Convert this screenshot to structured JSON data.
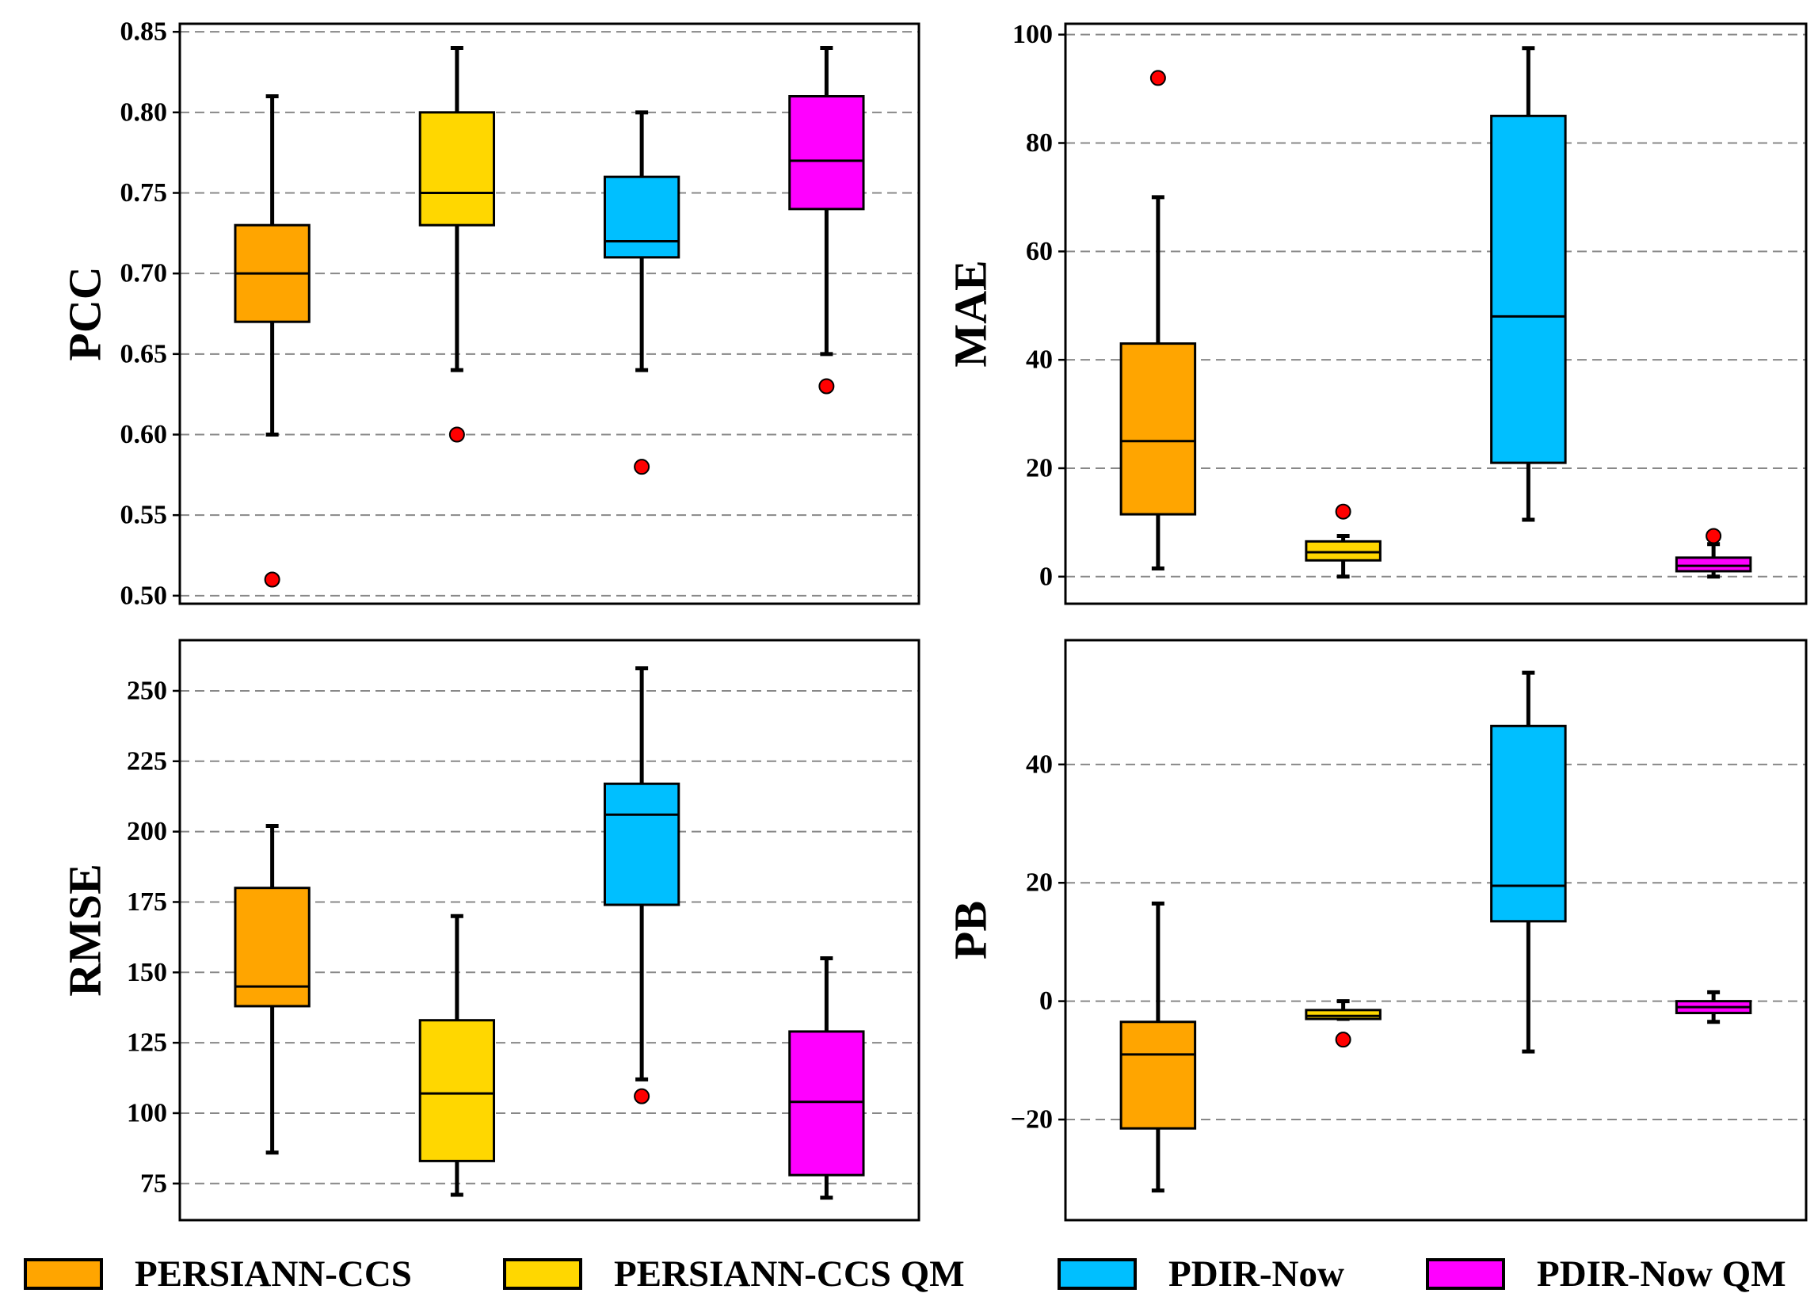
{
  "colors": {
    "PERSIANN-CCS": "#FFA500",
    "PERSIANN-CCS QM": "#FFD700",
    "PDIR-Now": "#00BFFF",
    "PDIR-Now QM": "#FF00FF",
    "outlier": "#FF0000",
    "grid": "#888888"
  },
  "legend": {
    "items": [
      {
        "label": "PERSIANN-CCS",
        "color": "#FFA500"
      },
      {
        "label": "PERSIANN-CCS QM",
        "color": "#FFD700"
      },
      {
        "label": "PDIR-Now",
        "color": "#00BFFF"
      },
      {
        "label": "PDIR-Now QM",
        "color": "#FF00FF"
      }
    ]
  },
  "chart_data": [
    {
      "type": "box",
      "ylabel": "PCC",
      "ylim": [
        0.495,
        0.855
      ],
      "yticks": [
        0.5,
        0.55,
        0.6,
        0.65,
        0.7,
        0.75,
        0.8,
        0.85
      ],
      "ytick_labels": [
        "0.50",
        "0.55",
        "0.60",
        "0.65",
        "0.70",
        "0.75",
        "0.80",
        "0.85"
      ],
      "grid": true,
      "series": [
        {
          "name": "PERSIANN-CCS",
          "whisker_low": 0.6,
          "q1": 0.67,
          "median": 0.7,
          "q3": 0.73,
          "whisker_high": 0.81,
          "outliers": [
            0.51
          ]
        },
        {
          "name": "PERSIANN-CCS QM",
          "whisker_low": 0.64,
          "q1": 0.73,
          "median": 0.75,
          "q3": 0.8,
          "whisker_high": 0.84,
          "outliers": [
            0.6
          ]
        },
        {
          "name": "PDIR-Now",
          "whisker_low": 0.64,
          "q1": 0.71,
          "median": 0.72,
          "q3": 0.76,
          "whisker_high": 0.8,
          "outliers": [
            0.58
          ]
        },
        {
          "name": "PDIR-Now QM",
          "whisker_low": 0.65,
          "q1": 0.74,
          "median": 0.77,
          "q3": 0.81,
          "whisker_high": 0.84,
          "outliers": [
            0.63
          ]
        }
      ]
    },
    {
      "type": "box",
      "ylabel": "MAE",
      "ylim": [
        -5,
        102
      ],
      "yticks": [
        0,
        20,
        40,
        60,
        80,
        100
      ],
      "ytick_labels": [
        "0",
        "20",
        "40",
        "60",
        "80",
        "100"
      ],
      "grid": true,
      "series": [
        {
          "name": "PERSIANN-CCS",
          "whisker_low": 1.5,
          "q1": 11.5,
          "median": 25,
          "q3": 43,
          "whisker_high": 70,
          "outliers": [
            92
          ]
        },
        {
          "name": "PERSIANN-CCS QM",
          "whisker_low": 0,
          "q1": 3,
          "median": 4.5,
          "q3": 6.5,
          "whisker_high": 7.5,
          "outliers": [
            12
          ]
        },
        {
          "name": "PDIR-Now",
          "whisker_low": 10.5,
          "q1": 21,
          "median": 48,
          "q3": 85,
          "whisker_high": 97.5,
          "outliers": []
        },
        {
          "name": "PDIR-Now QM",
          "whisker_low": 0,
          "q1": 1,
          "median": 2,
          "q3": 3.5,
          "whisker_high": 6,
          "outliers": [
            7.5
          ]
        }
      ]
    },
    {
      "type": "box",
      "ylabel": "RMSE",
      "ylim": [
        62,
        268
      ],
      "yticks": [
        75,
        100,
        125,
        150,
        175,
        200,
        225,
        250
      ],
      "ytick_labels": [
        "75",
        "100",
        "125",
        "150",
        "175",
        "200",
        "225",
        "250"
      ],
      "grid": true,
      "series": [
        {
          "name": "PERSIANN-CCS",
          "whisker_low": 86,
          "q1": 138,
          "median": 145,
          "q3": 180,
          "whisker_high": 202,
          "outliers": []
        },
        {
          "name": "PERSIANN-CCS QM",
          "whisker_low": 71,
          "q1": 83,
          "median": 107,
          "q3": 133,
          "whisker_high": 170,
          "outliers": []
        },
        {
          "name": "PDIR-Now",
          "whisker_low": 112,
          "q1": 174,
          "median": 206,
          "q3": 217,
          "whisker_high": 258,
          "outliers": [
            106
          ]
        },
        {
          "name": "PDIR-Now QM",
          "whisker_low": 70,
          "q1": 78,
          "median": 104,
          "q3": 129,
          "whisker_high": 155,
          "outliers": []
        }
      ]
    },
    {
      "type": "box",
      "ylabel": "PB",
      "ylim": [
        -37,
        61
      ],
      "yticks": [
        -20,
        0,
        20,
        40
      ],
      "ytick_labels": [
        "−20",
        "0",
        "20",
        "40"
      ],
      "grid": true,
      "series": [
        {
          "name": "PERSIANN-CCS",
          "whisker_low": -32,
          "q1": -21.5,
          "median": -9,
          "q3": -3.5,
          "whisker_high": 16.5,
          "outliers": []
        },
        {
          "name": "PERSIANN-CCS QM",
          "whisker_low": -3,
          "q1": -3,
          "median": -2.5,
          "q3": -1.5,
          "whisker_high": 0,
          "outliers": [
            -6.5
          ]
        },
        {
          "name": "PDIR-Now",
          "whisker_low": -8.5,
          "q1": 13.5,
          "median": 19.5,
          "q3": 46.5,
          "whisker_high": 55.5,
          "outliers": []
        },
        {
          "name": "PDIR-Now QM",
          "whisker_low": -3.5,
          "q1": -2,
          "median": -1,
          "q3": 0,
          "whisker_high": 1.5,
          "outliers": []
        }
      ]
    }
  ]
}
